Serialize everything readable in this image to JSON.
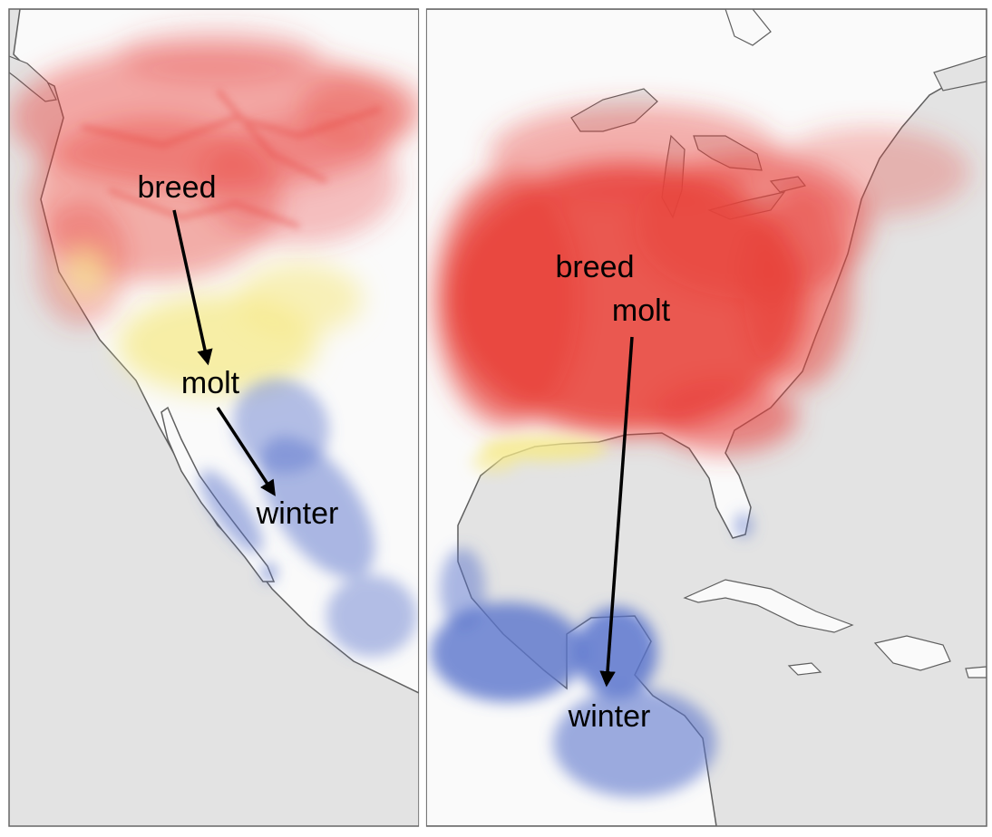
{
  "colors": {
    "ocean": "#e3e3e3",
    "land": "#fafafa",
    "coast": "#5f5f5f",
    "breed": "#e8413a",
    "molt": "#f6ea8a",
    "winter": "#5a74cc",
    "arrow": "#000000"
  },
  "legend_meaning": {
    "breed": "red",
    "molt": "yellow",
    "winter": "blue"
  },
  "left_panel": {
    "labels": {
      "breed": "breed",
      "molt": "molt",
      "winter": "winter"
    }
  },
  "right_panel": {
    "labels": {
      "breed": "breed",
      "molt": "molt",
      "winter": "winter"
    }
  }
}
